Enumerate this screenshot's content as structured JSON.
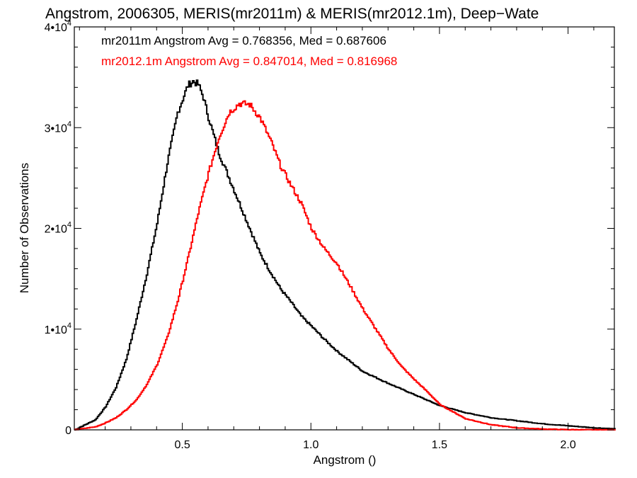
{
  "chart_data": {
    "type": "histogram-step",
    "title": "Angstrom, 2006305, MERIS(mr2011m) & MERIS(mr2012.1m), Deep−Wate",
    "xlabel": "Angstrom ()",
    "ylabel": "Number of Observations",
    "xlim": [
      0.08,
      2.18
    ],
    "ylim": [
      0,
      40000
    ],
    "x_ticks": [
      {
        "value": 0.5,
        "label": "0.5"
      },
      {
        "value": 1.0,
        "label": "1.0"
      },
      {
        "value": 1.5,
        "label": "1.5"
      },
      {
        "value": 2.0,
        "label": "2.0"
      }
    ],
    "y_ticks": [
      {
        "value": 0,
        "mant": "0",
        "exp": ""
      },
      {
        "value": 10000,
        "mant": "1•10",
        "exp": "4"
      },
      {
        "value": 20000,
        "mant": "2•10",
        "exp": "4"
      },
      {
        "value": 30000,
        "mant": "3•10",
        "exp": "4"
      },
      {
        "value": 40000,
        "mant": "4•10",
        "exp": "4"
      }
    ],
    "annotations": [
      {
        "text": "mr2011m Angstrom Avg = 0.768356, Med = 0.687606",
        "color": "#000000"
      },
      {
        "text": "mr2012.1m Angstrom Avg = 0.847014, Med = 0.816968",
        "color": "#ff0000"
      }
    ],
    "series": [
      {
        "color": "#000000",
        "x": [
          0.08,
          0.12,
          0.16,
          0.2,
          0.24,
          0.28,
          0.32,
          0.36,
          0.4,
          0.44,
          0.48,
          0.52,
          0.54,
          0.56,
          0.58,
          0.6,
          0.64,
          0.68,
          0.72,
          0.76,
          0.8,
          0.84,
          0.88,
          0.92,
          0.96,
          1.0,
          1.05,
          1.1,
          1.15,
          1.2,
          1.3,
          1.4,
          1.5,
          1.6,
          1.7,
          1.8,
          1.9,
          2.0,
          2.1,
          2.18
        ],
        "y": [
          0,
          500,
          1000,
          2300,
          4200,
          7000,
          11000,
          15500,
          20500,
          26500,
          31500,
          34200,
          34600,
          34300,
          33000,
          31000,
          27500,
          25000,
          22500,
          20000,
          17500,
          15700,
          14000,
          12700,
          11300,
          10300,
          9000,
          7800,
          6800,
          5800,
          4600,
          3500,
          2400,
          1700,
          1200,
          900,
          600,
          400,
          200,
          100
        ]
      },
      {
        "color": "#ff0000",
        "x": [
          0.08,
          0.16,
          0.2,
          0.24,
          0.28,
          0.32,
          0.36,
          0.4,
          0.44,
          0.48,
          0.52,
          0.56,
          0.6,
          0.64,
          0.68,
          0.72,
          0.76,
          0.8,
          0.84,
          0.88,
          0.92,
          0.96,
          1.0,
          1.05,
          1.1,
          1.15,
          1.2,
          1.25,
          1.3,
          1.35,
          1.4,
          1.45,
          1.5,
          1.55,
          1.6,
          1.7,
          1.8,
          1.9,
          2.0,
          2.1,
          2.18
        ],
        "y": [
          0,
          300,
          700,
          1200,
          2000,
          3000,
          4500,
          6500,
          9200,
          12800,
          17000,
          21500,
          25500,
          29000,
          31500,
          32400,
          32300,
          31000,
          28800,
          26200,
          24300,
          22500,
          20000,
          18000,
          16500,
          14300,
          12000,
          10000,
          8000,
          6300,
          5000,
          3800,
          2500,
          1800,
          1100,
          500,
          200,
          80,
          20,
          5,
          0
        ]
      }
    ]
  }
}
